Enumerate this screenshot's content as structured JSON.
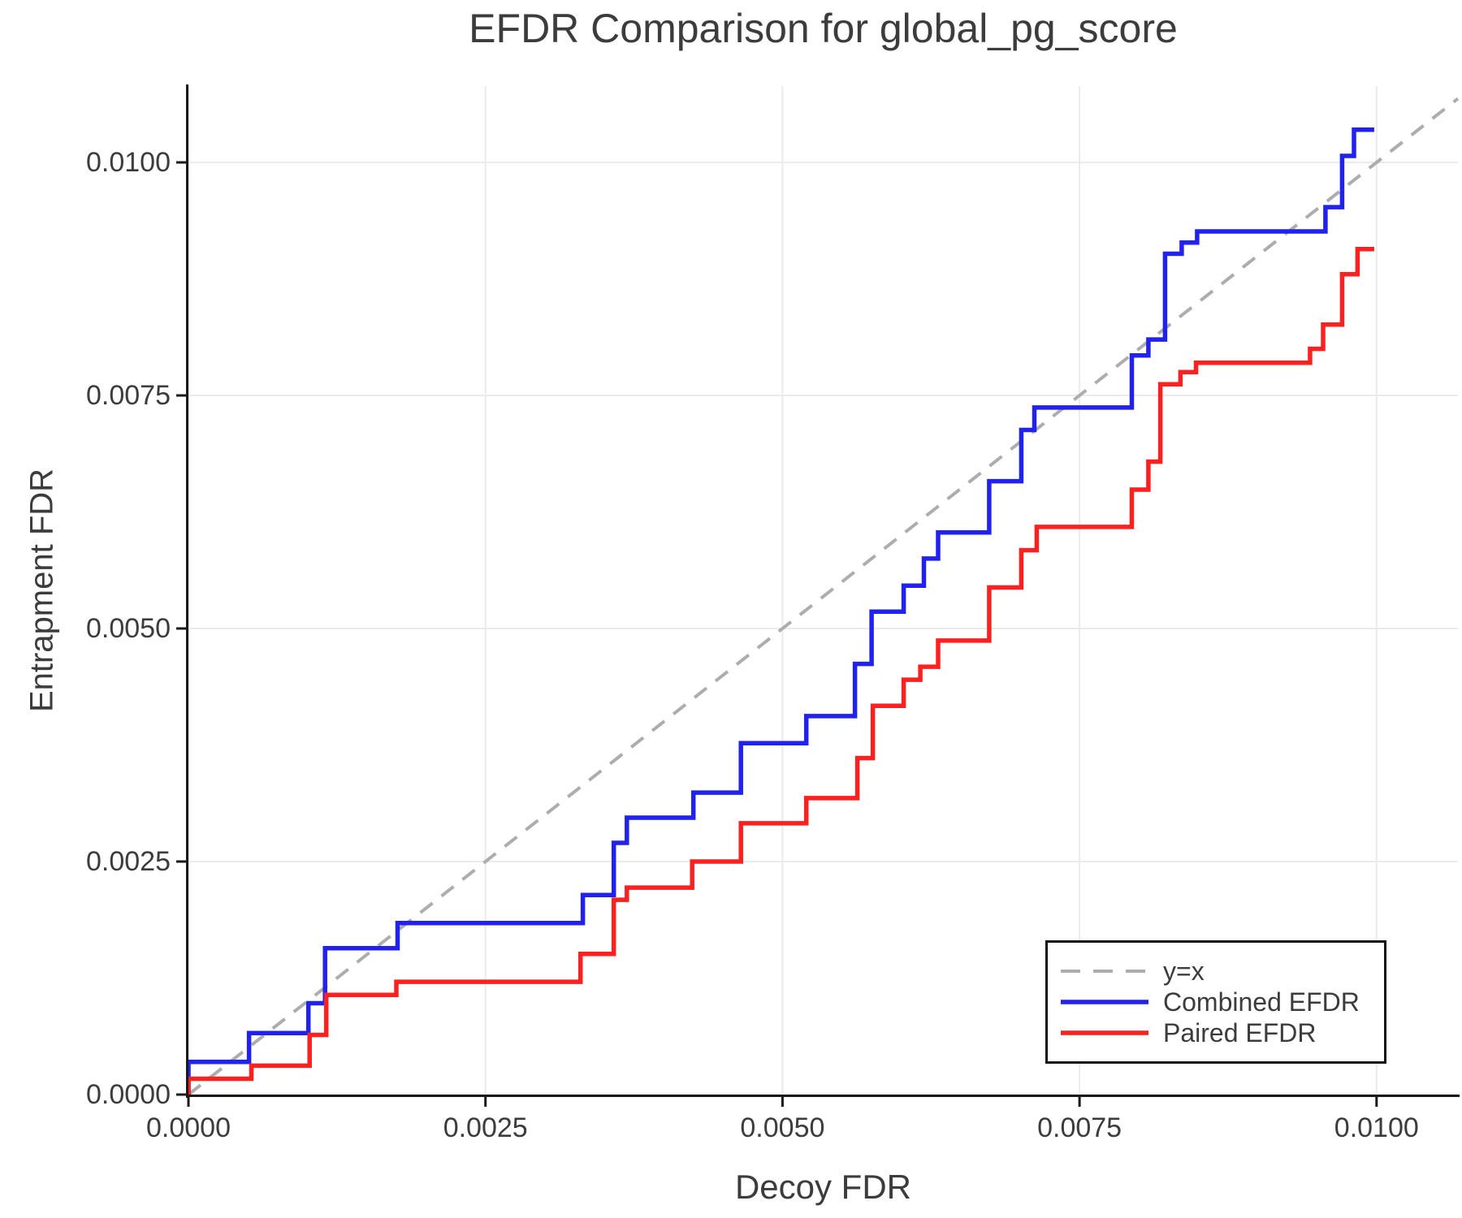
{
  "chart_data": {
    "type": "line",
    "title": "EFDR Comparison for global_pg_score",
    "xlabel": "Decoy FDR",
    "ylabel": "Entrapment FDR",
    "xlim": [
      0,
      0.010685
    ],
    "ylim": [
      0,
      0.010819
    ],
    "grid": true,
    "xticks": {
      "values": [
        0.0,
        0.0025,
        0.005,
        0.0075,
        0.01
      ],
      "labels": [
        "0.0000",
        "0.0025",
        "0.0050",
        "0.0075",
        "0.0100"
      ]
    },
    "yticks": {
      "values": [
        0.0,
        0.0025,
        0.005,
        0.0075,
        0.01
      ],
      "labels": [
        "0.0000",
        "0.0025",
        "0.0050",
        "0.0075",
        "0.0100"
      ]
    },
    "legend": {
      "position": "lower right"
    },
    "style": {
      "axis_color": "#1a1a1a",
      "grid_color": "#ebebeb",
      "text_color": "#3c3c3c",
      "background": "#ffffff"
    },
    "series": [
      {
        "name": "y=x",
        "type": "line",
        "style": "dashed",
        "color": "#adadad",
        "width": 4,
        "points": [
          [
            0,
            0
          ],
          [
            0.010685,
            0.010685
          ]
        ]
      },
      {
        "name": "Combined EFDR",
        "type": "step",
        "style": "solid",
        "color": "#2222ee",
        "width": 5.5,
        "points": [
          [
            0,
            0
          ],
          [
            0,
            0.00035
          ],
          [
            0.00051,
            0.00066
          ],
          [
            0.00101,
            0.00098
          ],
          [
            0.00115,
            0.00157
          ],
          [
            0.00176,
            0.00184
          ],
          [
            0.00332,
            0.00214
          ],
          [
            0.00358,
            0.0027
          ],
          [
            0.00369,
            0.00297
          ],
          [
            0.00425,
            0.00324
          ],
          [
            0.00465,
            0.00377
          ],
          [
            0.0052,
            0.00406
          ],
          [
            0.00561,
            0.00462
          ],
          [
            0.00575,
            0.00518
          ],
          [
            0.00602,
            0.00546
          ],
          [
            0.00619,
            0.00575
          ],
          [
            0.00631,
            0.00603
          ],
          [
            0.00674,
            0.00658
          ],
          [
            0.00701,
            0.00713
          ],
          [
            0.00712,
            0.00737
          ],
          [
            0.00794,
            0.00793
          ],
          [
            0.00808,
            0.0081
          ],
          [
            0.00822,
            0.00902
          ],
          [
            0.00836,
            0.00914
          ],
          [
            0.00849,
            0.00926
          ],
          [
            0.00957,
            0.00952
          ],
          [
            0.00971,
            0.01007
          ],
          [
            0.00981,
            0.01035
          ],
          [
            0.00998,
            0.01035
          ]
        ]
      },
      {
        "name": "Paired EFDR",
        "type": "step",
        "style": "solid",
        "color": "#fb2121",
        "width": 5.5,
        "points": [
          [
            0,
            0
          ],
          [
            0,
            0.00017
          ],
          [
            0.00053,
            0.00031
          ],
          [
            0.00102,
            0.00064
          ],
          [
            0.00116,
            0.00107
          ],
          [
            0.00175,
            0.00121
          ],
          [
            0.0033,
            0.00151
          ],
          [
            0.00358,
            0.00209
          ],
          [
            0.00369,
            0.00222
          ],
          [
            0.00424,
            0.0025
          ],
          [
            0.00465,
            0.00291
          ],
          [
            0.0052,
            0.00318
          ],
          [
            0.00563,
            0.00361
          ],
          [
            0.00576,
            0.00417
          ],
          [
            0.00602,
            0.00445
          ],
          [
            0.00616,
            0.00459
          ],
          [
            0.00631,
            0.00487
          ],
          [
            0.00674,
            0.00544
          ],
          [
            0.00701,
            0.00584
          ],
          [
            0.00714,
            0.00609
          ],
          [
            0.00794,
            0.00649
          ],
          [
            0.00808,
            0.00679
          ],
          [
            0.00818,
            0.00762
          ],
          [
            0.00835,
            0.00775
          ],
          [
            0.00848,
            0.00785
          ],
          [
            0.00944,
            0.008
          ],
          [
            0.00955,
            0.00826
          ],
          [
            0.00971,
            0.0088
          ],
          [
            0.00984,
            0.00907
          ],
          [
            0.00998,
            0.00907
          ]
        ]
      }
    ]
  }
}
